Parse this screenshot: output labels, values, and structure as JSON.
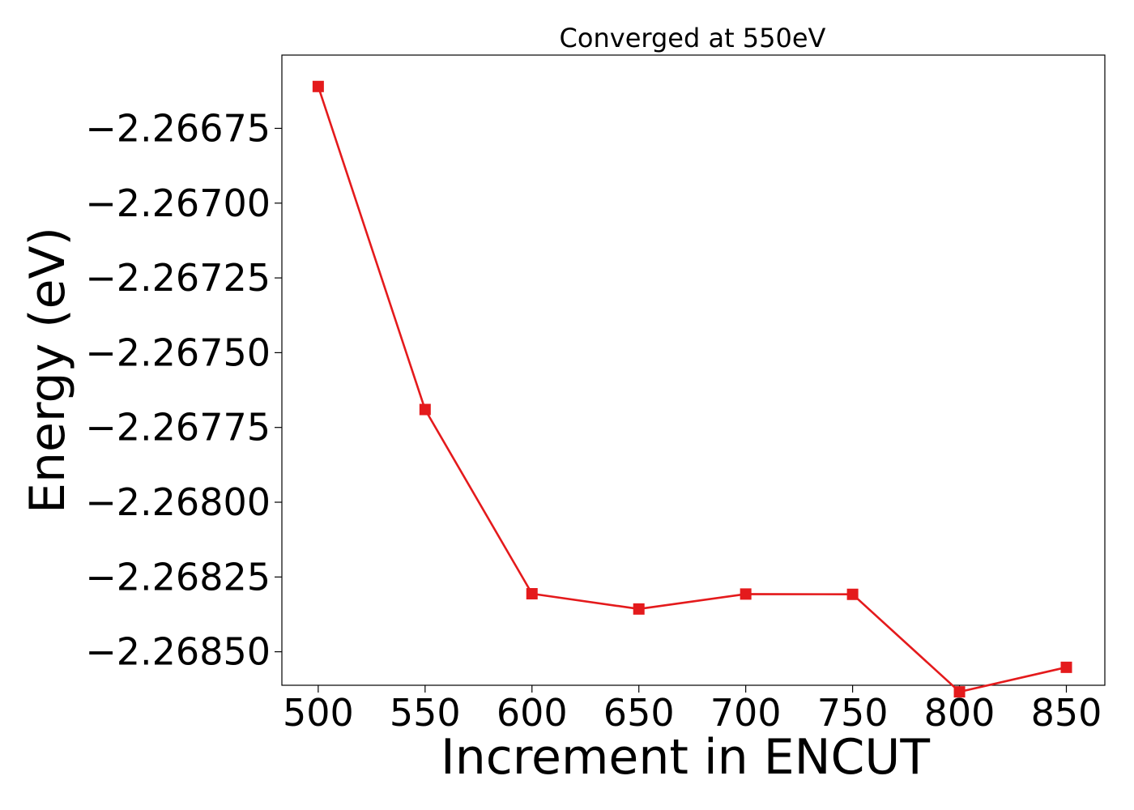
{
  "chart_data": {
    "type": "line",
    "title": "Converged at 550eV",
    "xlabel": "Increment in ENCUT",
    "ylabel": "Energy (eV)",
    "x": [
      500,
      550,
      600,
      650,
      700,
      750,
      800,
      850
    ],
    "x_ticks": [
      500,
      550,
      600,
      650,
      700,
      750,
      800,
      850
    ],
    "x_tick_labels": [
      "500",
      "550",
      "600",
      "650",
      "700",
      "750",
      "800",
      "850"
    ],
    "xlim": [
      483,
      868
    ],
    "y_ticks": [
      -2.26675,
      -2.267,
      -2.26725,
      -2.2675,
      -2.26775,
      -2.268,
      -2.26825,
      -2.2685
    ],
    "y_tick_labels": [
      "−2.26675",
      "−2.26700",
      "−2.26725",
      "−2.26750",
      "−2.26775",
      "−2.26800",
      "−2.26825",
      "−2.26850"
    ],
    "ylim": [
      -2.268612,
      -2.266505
    ],
    "series": [
      {
        "values": [
          -2.26661,
          -2.26769,
          -2.268306,
          -2.268357,
          -2.268307,
          -2.268308,
          -2.268634,
          -2.268552
        ],
        "color": "#e41a1c",
        "marker": "square"
      }
    ],
    "grid": false,
    "legend": "none"
  }
}
